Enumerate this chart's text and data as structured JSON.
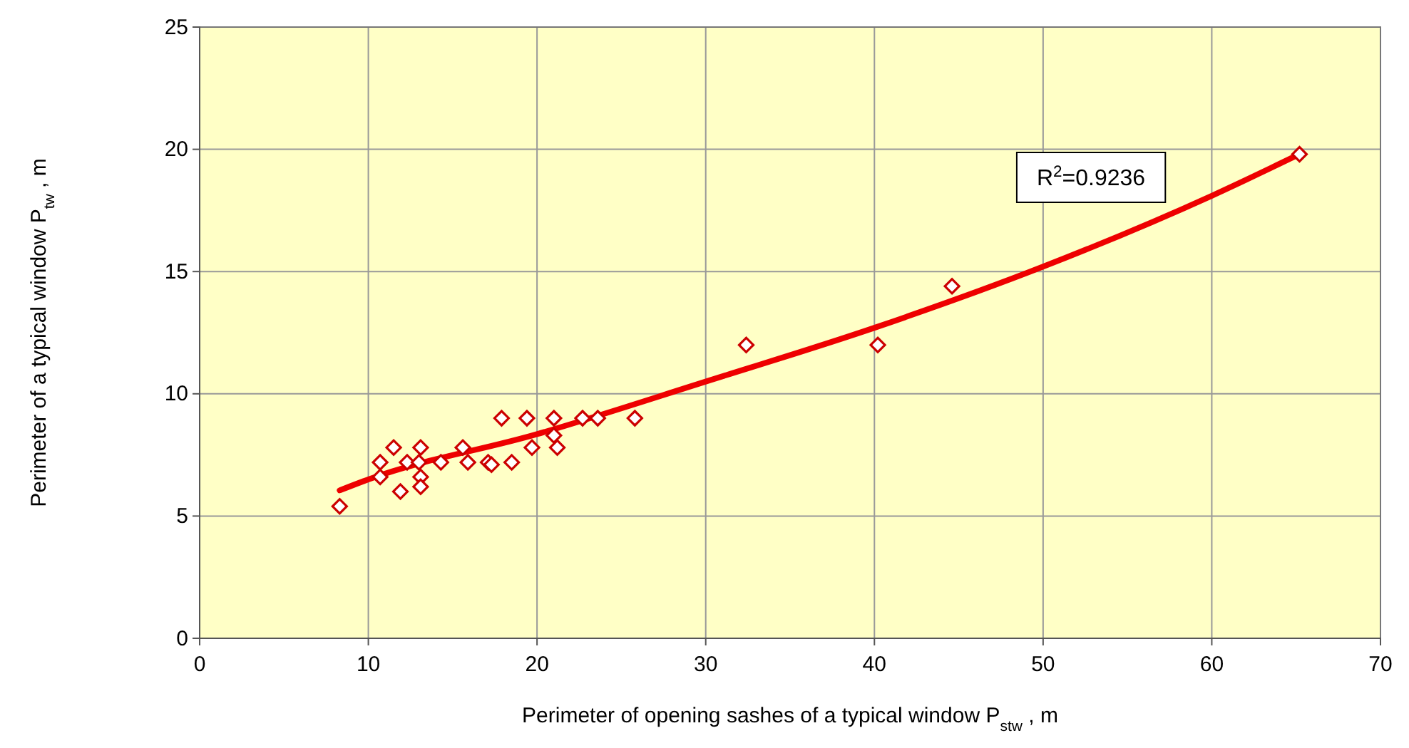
{
  "chart_data": {
    "type": "scatter",
    "xlabel": "Perimeter of opening sashes of a typical window   P$_{stw}$ ,  m",
    "ylabel": "Perimeter of a typical window  P$_{tw}$ , m",
    "xlim": [
      0,
      70
    ],
    "xticks": [
      0,
      10,
      20,
      30,
      40,
      50,
      60,
      70
    ],
    "ylim": [
      0,
      25
    ],
    "yticks": [
      0,
      5,
      10,
      15,
      20,
      25
    ],
    "grid": true,
    "marker": "diamond",
    "annotations": [
      "R$^{2}$=0.9236"
    ],
    "series": [
      {
        "color": "#cc0000",
        "x": [
          8.3,
          10.7,
          10.7,
          11.5,
          11.9,
          12.3,
          13.0,
          13.1,
          13.1,
          13.1,
          14.3,
          15.6,
          15.9,
          17.1,
          17.3,
          17.9,
          18.5,
          19.4,
          19.7,
          21.0,
          21.0,
          21.2,
          22.7,
          23.6,
          25.8,
          32.4,
          40.2,
          44.6,
          65.2
        ],
        "values": [
          5.4,
          7.2,
          6.6,
          7.8,
          6.0,
          7.2,
          7.2,
          7.8,
          6.6,
          6.2,
          7.2,
          7.8,
          7.2,
          7.2,
          7.1,
          9.0,
          7.2,
          9.0,
          7.8,
          9.0,
          8.3,
          7.8,
          9.0,
          9.0,
          9.0,
          12.0,
          12.0,
          14.4,
          19.8
        ]
      },
      {
        "type": "line",
        "color": "#ee0000",
        "line_style": "solid",
        "marker": "none",
        "x": [
          8.3,
          10,
          20,
          30,
          40,
          50,
          60,
          65.2
        ],
        "values": [
          6.05,
          6.5,
          8.35,
          10.5,
          12.7,
          15.2,
          18.1,
          19.8
        ]
      }
    ]
  }
}
